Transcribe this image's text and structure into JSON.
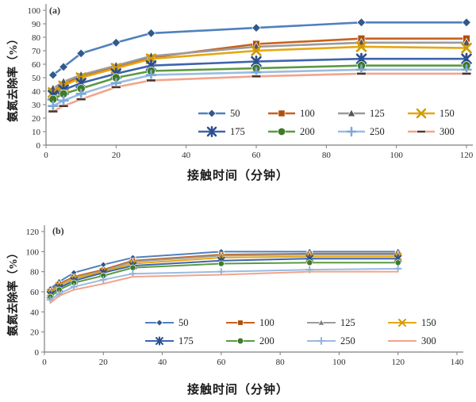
{
  "figure": {
    "description": "Two-panel line figure of ammonia nitrogen removal rate versus contact time"
  },
  "chart_data": [
    {
      "type": "line",
      "panel_label": "(a)",
      "xlabel": "接触时间（分钟）",
      "ylabel": "氨氮去除率（%）",
      "xlim": [
        0,
        120
      ],
      "xtick_step": 20,
      "ylim": [
        0,
        100
      ],
      "ytick_step": 10,
      "grid": false,
      "legend_position": "inside bottom-right, 2 rows x 4 cols",
      "x": [
        2,
        5,
        10,
        20,
        30,
        60,
        90,
        120
      ],
      "series": [
        {
          "name": "50",
          "color": "#4F81BD",
          "marker": "diamond",
          "marker_color": "#31598C",
          "values": [
            52,
            58,
            68,
            76,
            83,
            87,
            91,
            91
          ]
        },
        {
          "name": "100",
          "color": "#C8611D",
          "marker": "square",
          "marker_color": "#AF4F0E",
          "values": [
            40,
            45,
            51,
            58,
            65,
            75,
            79,
            79
          ]
        },
        {
          "name": "125",
          "color": "#9B9B9B",
          "marker": "triangle",
          "marker_color": "#565656",
          "values": [
            42,
            47,
            52,
            59,
            66,
            73,
            76,
            76
          ]
        },
        {
          "name": "150",
          "color": "#E5A712",
          "marker": "x",
          "marker_color": "#D29A00",
          "values": [
            39,
            44,
            50,
            57,
            64,
            70,
            73,
            72
          ]
        },
        {
          "name": "175",
          "color": "#3D64AC",
          "marker": "star",
          "marker_color": "#2C4E8F",
          "values": [
            37,
            41,
            46,
            53,
            59,
            62,
            64,
            64
          ]
        },
        {
          "name": "200",
          "color": "#5A9B41",
          "marker": "circle",
          "marker_color": "#3E7A28",
          "values": [
            34,
            38,
            42,
            50,
            55,
            57,
            59,
            59
          ]
        },
        {
          "name": "250",
          "color": "#9BBBE2",
          "marker": "plus",
          "marker_color": "#7FA8D6",
          "values": [
            29,
            33,
            38,
            46,
            52,
            54,
            56,
            56
          ]
        },
        {
          "name": "300",
          "color": "#F2A48A",
          "marker": "dash",
          "marker_color": "#4E362A",
          "values": [
            25,
            29,
            34,
            43,
            48,
            51,
            53,
            53
          ]
        }
      ]
    },
    {
      "type": "line",
      "panel_label": "(b)",
      "xlabel": "接触时间（分钟）",
      "ylabel": "氨氮去除率（%）",
      "xlim": [
        0,
        140
      ],
      "xtick_step": 20,
      "ylim": [
        0,
        120
      ],
      "ytick_step": 20,
      "grid": false,
      "legend_position": "inside bottom-center, 2 rows x 4 cols",
      "x": [
        2,
        5,
        10,
        20,
        30,
        60,
        90,
        120
      ],
      "series": [
        {
          "name": "50",
          "color": "#4F81BD",
          "marker": "diamond",
          "marker_color": "#31598C",
          "values": [
            63,
            70,
            79,
            87,
            94,
            100,
            100,
            100
          ]
        },
        {
          "name": "100",
          "color": "#C8611D",
          "marker": "square",
          "marker_color": "#AF4F0E",
          "values": [
            61,
            68,
            75,
            82,
            91,
            97,
            98,
            98
          ]
        },
        {
          "name": "125",
          "color": "#9B9B9B",
          "marker": "triangle",
          "marker_color": "#7F7F7F",
          "values": [
            60,
            67,
            74,
            81,
            90,
            96,
            97,
            97
          ]
        },
        {
          "name": "150",
          "color": "#E5A712",
          "marker": "x",
          "marker_color": "#D29A00",
          "values": [
            59,
            66,
            73,
            80,
            88,
            94,
            95,
            95
          ]
        },
        {
          "name": "175",
          "color": "#3D64AC",
          "marker": "star",
          "marker_color": "#2C4E8F",
          "values": [
            57,
            64,
            71,
            79,
            86,
            91,
            93,
            93
          ]
        },
        {
          "name": "200",
          "color": "#5A9B41",
          "marker": "circle",
          "marker_color": "#3E7A28",
          "values": [
            55,
            62,
            69,
            76,
            84,
            88,
            89,
            89
          ]
        },
        {
          "name": "250",
          "color": "#9BBBE2",
          "marker": "plus",
          "marker_color": "#8FB2DC",
          "values": [
            52,
            58,
            65,
            72,
            78,
            80,
            82,
            83
          ]
        },
        {
          "name": "300",
          "color": "#F2A48A",
          "marker": "none",
          "marker_color": "#F2A48A",
          "values": [
            49,
            56,
            62,
            68,
            75,
            77,
            80,
            80
          ]
        }
      ]
    }
  ],
  "style": {
    "axis_color": "#7F7F7F",
    "tick_text_color": "#2E2E2E",
    "legend_text_color": "#1F1F1F"
  }
}
